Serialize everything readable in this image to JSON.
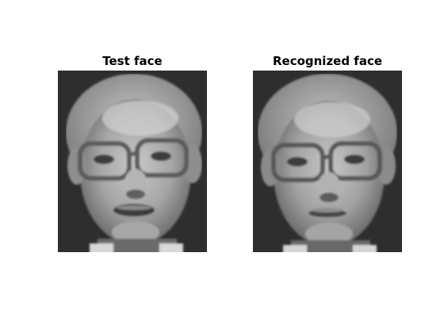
{
  "figure": {
    "panels": [
      {
        "title": "Test face"
      },
      {
        "title": "Recognized face"
      }
    ]
  },
  "colors": {
    "background": "#ffffff",
    "image_dark": "#2b2b2b",
    "image_mid": "#8a8a8a",
    "image_light": "#cfcfcf"
  }
}
